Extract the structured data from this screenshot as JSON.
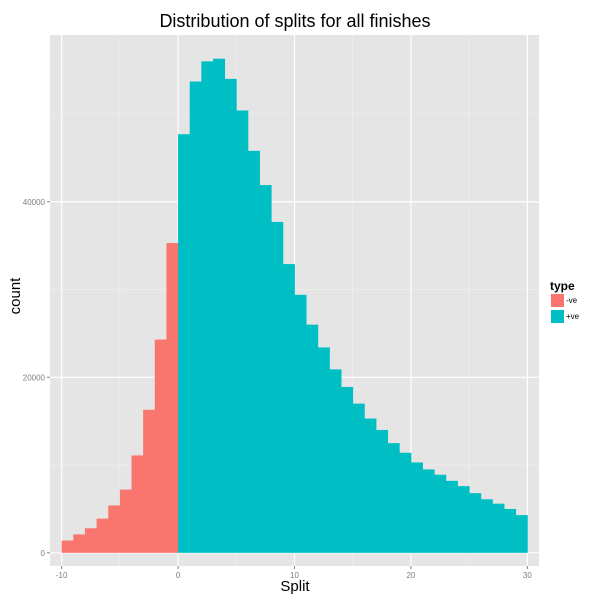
{
  "chart_data": {
    "type": "bar",
    "title": "Distribution of splits for all finishes",
    "xlabel": "Split",
    "ylabel": "count",
    "xlim": [
      -11,
      31
    ],
    "ylim": [
      -1500,
      59000
    ],
    "x_ticks": [
      -10,
      0,
      10,
      20,
      30
    ],
    "x_tick_labels": [
      "-10",
      "0",
      "10",
      "20",
      "30"
    ],
    "y_ticks": [
      0,
      20000,
      40000
    ],
    "y_tick_labels": [
      "0",
      "20000",
      "40000"
    ],
    "grid": true,
    "legend": {
      "title": "type",
      "position": "right"
    },
    "bin_width": 1,
    "series": [
      {
        "name": "-ve",
        "color": "#F8766D",
        "bins": [
          {
            "x0": -10,
            "x1": -9,
            "count": 1400
          },
          {
            "x0": -9,
            "x1": -8,
            "count": 2100
          },
          {
            "x0": -8,
            "x1": -7,
            "count": 2800
          },
          {
            "x0": -7,
            "x1": -6,
            "count": 3900
          },
          {
            "x0": -6,
            "x1": -5,
            "count": 5400
          },
          {
            "x0": -5,
            "x1": -4,
            "count": 7200
          },
          {
            "x0": -4,
            "x1": -3,
            "count": 11100
          },
          {
            "x0": -3,
            "x1": -2,
            "count": 16300
          },
          {
            "x0": -2,
            "x1": -1,
            "count": 24300
          },
          {
            "x0": -1,
            "x1": 0,
            "count": 35300
          }
        ]
      },
      {
        "name": "+ve",
        "color": "#00BFC4",
        "bins": [
          {
            "x0": 0,
            "x1": 1,
            "count": 47700
          },
          {
            "x0": 1,
            "x1": 2,
            "count": 53700
          },
          {
            "x0": 2,
            "x1": 3,
            "count": 56000
          },
          {
            "x0": 3,
            "x1": 4,
            "count": 56300
          },
          {
            "x0": 4,
            "x1": 5,
            "count": 54000
          },
          {
            "x0": 5,
            "x1": 6,
            "count": 50400
          },
          {
            "x0": 6,
            "x1": 7,
            "count": 45800
          },
          {
            "x0": 7,
            "x1": 8,
            "count": 41900
          },
          {
            "x0": 8,
            "x1": 9,
            "count": 37700
          },
          {
            "x0": 9,
            "x1": 10,
            "count": 32900
          },
          {
            "x0": 10,
            "x1": 11,
            "count": 29400
          },
          {
            "x0": 11,
            "x1": 12,
            "count": 26000
          },
          {
            "x0": 12,
            "x1": 13,
            "count": 23400
          },
          {
            "x0": 13,
            "x1": 14,
            "count": 20900
          },
          {
            "x0": 14,
            "x1": 15,
            "count": 18900
          },
          {
            "x0": 15,
            "x1": 16,
            "count": 17000
          },
          {
            "x0": 16,
            "x1": 17,
            "count": 15300
          },
          {
            "x0": 17,
            "x1": 18,
            "count": 14000
          },
          {
            "x0": 18,
            "x1": 19,
            "count": 12500
          },
          {
            "x0": 19,
            "x1": 20,
            "count": 11400
          },
          {
            "x0": 20,
            "x1": 21,
            "count": 10300
          },
          {
            "x0": 21,
            "x1": 22,
            "count": 9500
          },
          {
            "x0": 22,
            "x1": 23,
            "count": 8900
          },
          {
            "x0": 23,
            "x1": 24,
            "count": 8200
          },
          {
            "x0": 24,
            "x1": 25,
            "count": 7600
          },
          {
            "x0": 25,
            "x1": 26,
            "count": 6800
          },
          {
            "x0": 26,
            "x1": 27,
            "count": 6100
          },
          {
            "x0": 27,
            "x1": 28,
            "count": 5600
          },
          {
            "x0": 28,
            "x1": 29,
            "count": 5000
          },
          {
            "x0": 29,
            "x1": 30,
            "count": 4300
          }
        ]
      }
    ],
    "panel_background": "#E5E5E5",
    "grid_color": "#FFFFFF"
  }
}
